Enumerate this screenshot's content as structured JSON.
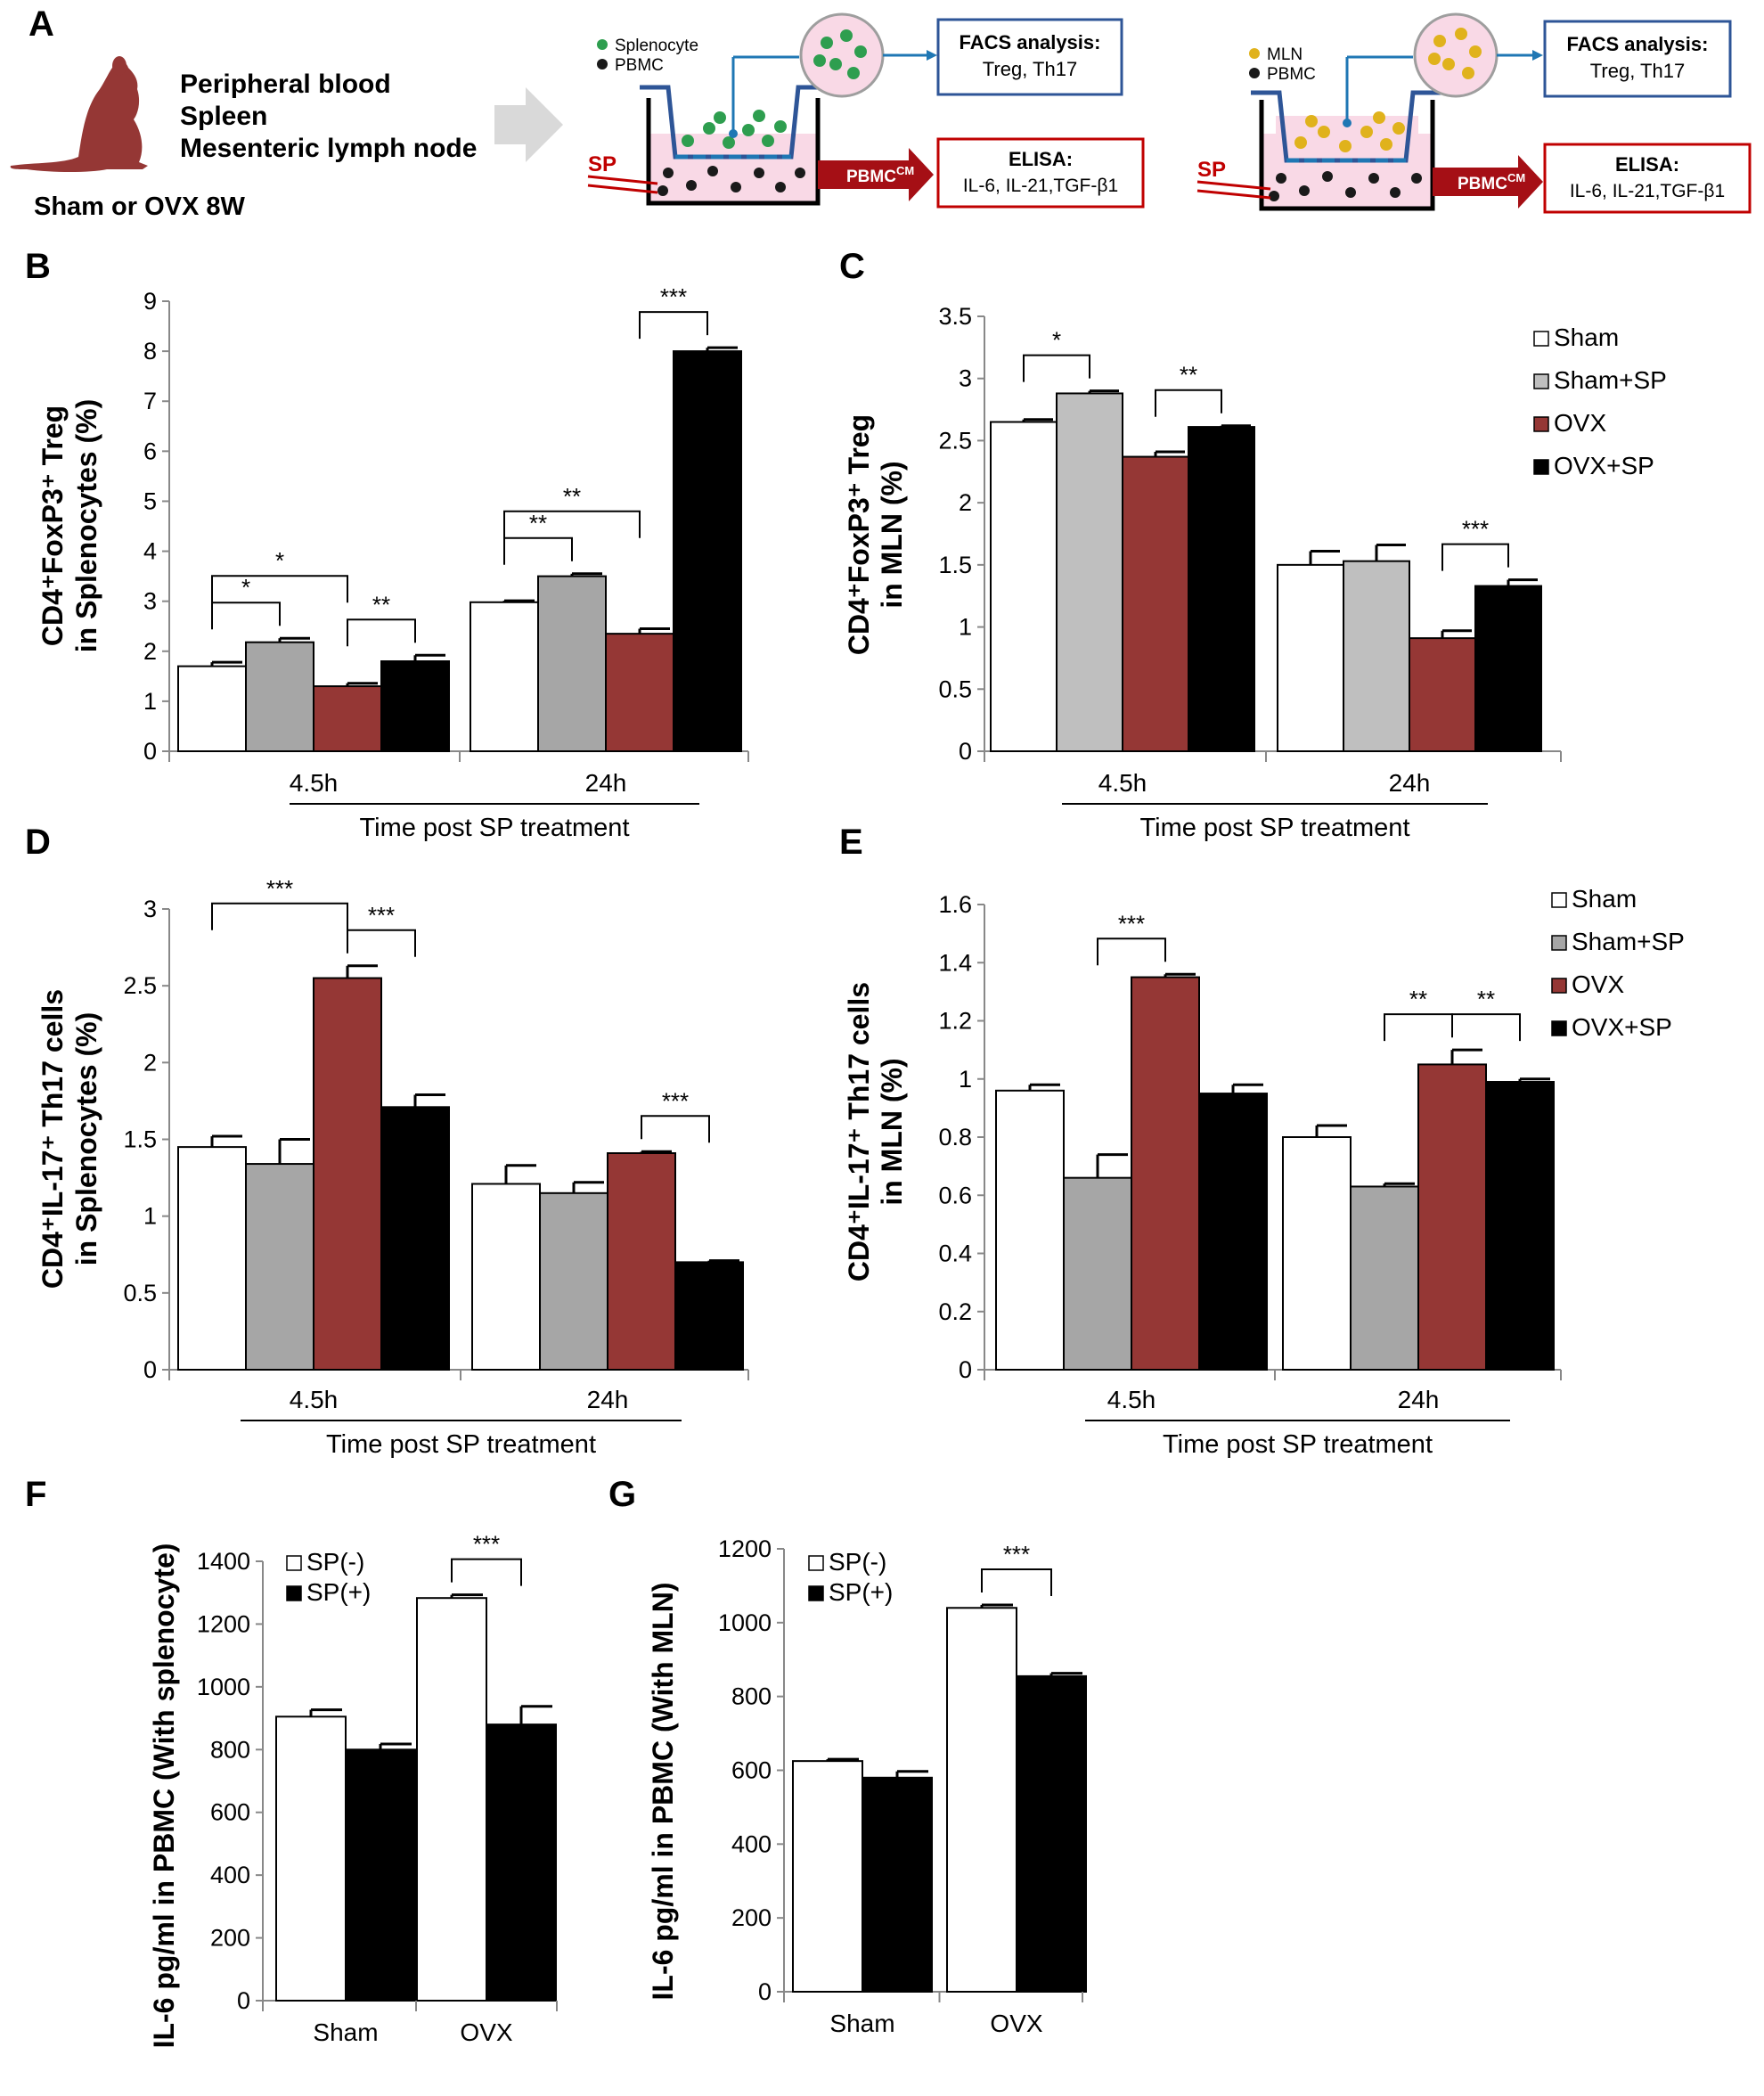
{
  "panel_A": {
    "label": "A",
    "tissue_lines": [
      "Peripheral blood",
      "Spleen",
      "Mesenteric lymph node"
    ],
    "group_text": "Sham or OVX 8W",
    "schematic_left": {
      "legend": [
        "Splenocyte",
        "PBMC"
      ],
      "facs_title": "FACS analysis:",
      "facs_detail": "Treg, Th17",
      "elisa_title": "ELISA:",
      "elisa_detail": "IL-6, IL-21,TGF-β1",
      "sp_label": "SP",
      "pbmc_cm": "PBMC",
      "pbmc_cm_sup": "CM",
      "dot_color": "#2e9e4f"
    },
    "schematic_right": {
      "legend": [
        "MLN",
        "PBMC"
      ],
      "facs_title": "FACS analysis:",
      "facs_detail": "Treg, Th17",
      "elisa_title": "ELISA:",
      "elisa_detail": "IL-6, IL-21,TGF-β1",
      "sp_label": "SP",
      "pbmc_cm": "PBMC",
      "pbmc_cm_sup": "CM",
      "dot_color": "#e0b21c"
    }
  },
  "colors": {
    "white": "#ffffff",
    "gray": "#a6a6a6",
    "lightgray": "#bfbfbf",
    "red": "#953735",
    "black": "#000000",
    "mouse": "#953735",
    "arrow_red": "#a50f15",
    "box_blue": "#2e5597",
    "line_blue": "#1f77b4",
    "well_pink": "#f9d9e6"
  },
  "chart_data": [
    {
      "panel": "B",
      "type": "bar",
      "ylabel_line1": "CD4⁺FoxP3⁺ Treg",
      "ylabel_line2": "in Splenocytes (%)",
      "xlabel": "Time post SP treatment",
      "categories": [
        "4.5h",
        "24h"
      ],
      "ylim": [
        0,
        9
      ],
      "yticks": [
        "0",
        "1",
        "2",
        "3",
        "4",
        "5",
        "6",
        "7",
        "8",
        "9"
      ],
      "series": [
        {
          "values": [
            1.7,
            2.98
          ],
          "errors": [
            0.08,
            0.03
          ],
          "color": "#ffffff"
        },
        {
          "values": [
            2.18,
            3.5
          ],
          "errors": [
            0.08,
            0.05
          ],
          "color": "#a6a6a6"
        },
        {
          "values": [
            1.3,
            2.35
          ],
          "errors": [
            0.06,
            0.1
          ],
          "color": "#953735"
        },
        {
          "values": [
            1.8,
            8.0
          ],
          "errors": [
            0.12,
            0.07
          ],
          "color": "#000000"
        }
      ],
      "significance": [
        {
          "label": "*",
          "group": 0,
          "from": 0,
          "to": 2
        },
        {
          "label": "*",
          "group": 0,
          "from": 0,
          "to": 1
        },
        {
          "label": "**",
          "group": 0,
          "from": 2,
          "to": 3
        },
        {
          "label": "**",
          "group": 1,
          "from": 0,
          "to": 1
        },
        {
          "label": "**",
          "group": 1,
          "from": 0,
          "to": 2
        },
        {
          "label": "***",
          "group": 1,
          "from": 2,
          "to": 3
        }
      ]
    },
    {
      "panel": "C",
      "type": "bar",
      "ylabel_line1": "CD4⁺FoxP3⁺ Treg",
      "ylabel_line2": "in MLN (%)",
      "xlabel": "Time post SP treatment",
      "categories": [
        "4.5h",
        "24h"
      ],
      "ylim": [
        0,
        3.5
      ],
      "yticks": [
        "0",
        "0.5",
        "1",
        "1.5",
        "2",
        "2.5",
        "3",
        "3.5"
      ],
      "legend": [
        "Sham",
        "Sham+SP",
        "OVX",
        "OVX+SP"
      ],
      "series": [
        {
          "name": "Sham",
          "values": [
            2.65,
            1.5
          ],
          "errors": [
            0.02,
            0.11
          ],
          "color": "#ffffff"
        },
        {
          "name": "Sham+SP",
          "values": [
            2.88,
            1.53
          ],
          "errors": [
            0.02,
            0.13
          ],
          "color": "#bfbfbf"
        },
        {
          "name": "OVX",
          "values": [
            2.37,
            0.91
          ],
          "errors": [
            0.04,
            0.06
          ],
          "color": "#953735"
        },
        {
          "name": "OVX+SP",
          "values": [
            2.61,
            1.33
          ],
          "errors": [
            0.01,
            0.05
          ],
          "color": "#000000"
        }
      ],
      "significance": [
        {
          "label": "*",
          "group": 0,
          "from": 0,
          "to": 1
        },
        {
          "label": "**",
          "group": 0,
          "from": 2,
          "to": 3
        },
        {
          "label": "***",
          "group": 1,
          "from": 2,
          "to": 3
        }
      ]
    },
    {
      "panel": "D",
      "type": "bar",
      "ylabel_line1": "CD4⁺IL-17⁺ Th17 cells",
      "ylabel_line2": "in Splenocytes (%)",
      "xlabel": "Time post SP treatment",
      "categories": [
        "4.5h",
        "24h"
      ],
      "ylim": [
        0,
        3
      ],
      "yticks": [
        "0",
        "0.5",
        "1",
        "1.5",
        "2",
        "2.5",
        "3"
      ],
      "series": [
        {
          "values": [
            1.45,
            1.21
          ],
          "errors": [
            0.07,
            0.12
          ],
          "color": "#ffffff"
        },
        {
          "values": [
            1.34,
            1.15
          ],
          "errors": [
            0.16,
            0.07
          ],
          "color": "#a6a6a6"
        },
        {
          "values": [
            2.55,
            1.41
          ],
          "errors": [
            0.08,
            0.01
          ],
          "color": "#953735"
        },
        {
          "values": [
            1.71,
            0.7
          ],
          "errors": [
            0.08,
            0.01
          ],
          "color": "#000000"
        }
      ],
      "significance": [
        {
          "label": "***",
          "group": 0,
          "from": 0,
          "to": 2
        },
        {
          "label": "***",
          "group": 0,
          "from": 2,
          "to": 3
        },
        {
          "label": "***",
          "group": 1,
          "from": 2,
          "to": 3
        }
      ]
    },
    {
      "panel": "E",
      "type": "bar",
      "ylabel_line1": "CD4⁺IL-17⁺ Th17 cells",
      "ylabel_line2": "in MLN (%)",
      "xlabel": "Time post SP treatment",
      "categories": [
        "4.5h",
        "24h"
      ],
      "ylim": [
        0,
        1.6
      ],
      "yticks": [
        "0",
        "0.2",
        "0.4",
        "0.6",
        "0.8",
        "1",
        "1.2",
        "1.4",
        "1.6"
      ],
      "legend": [
        "Sham",
        "Sham+SP",
        "OVX",
        "OVX+SP"
      ],
      "series": [
        {
          "name": "Sham",
          "values": [
            0.96,
            0.8
          ],
          "errors": [
            0.02,
            0.04
          ],
          "color": "#ffffff"
        },
        {
          "name": "Sham+SP",
          "values": [
            0.66,
            0.63
          ],
          "errors": [
            0.08,
            0.01
          ],
          "color": "#a6a6a6"
        },
        {
          "name": "OVX",
          "values": [
            1.35,
            1.05
          ],
          "errors": [
            0.01,
            0.05
          ],
          "color": "#953735"
        },
        {
          "name": "OVX+SP",
          "values": [
            0.95,
            0.99
          ],
          "errors": [
            0.03,
            0.01
          ],
          "color": "#000000"
        }
      ],
      "significance": [
        {
          "label": "***",
          "group": 0,
          "from": 1,
          "to": 2
        },
        {
          "label": "**",
          "group": 1,
          "from": 1,
          "to": 2
        },
        {
          "label": "**",
          "group": 1,
          "from": 2,
          "to": 3
        }
      ]
    },
    {
      "panel": "F",
      "type": "bar",
      "ylabel": "IL-6 pg/ml in PBMC (With splenocyte)",
      "categories": [
        "Sham",
        "OVX"
      ],
      "ylim": [
        0,
        1400
      ],
      "yticks": [
        "0",
        "200",
        "400",
        "600",
        "800",
        "1000",
        "1200",
        "1400"
      ],
      "legend": [
        "SP(-)",
        "SP(+)"
      ],
      "series": [
        {
          "name": "SP(-)",
          "values": [
            905,
            1283
          ],
          "errors": [
            22,
            10
          ],
          "color": "#ffffff"
        },
        {
          "name": "SP(+)",
          "values": [
            800,
            880
          ],
          "errors": [
            18,
            58
          ],
          "color": "#000000"
        }
      ],
      "significance": [
        {
          "label": "***",
          "group": 1,
          "from": 0,
          "to": 1
        }
      ]
    },
    {
      "panel": "G",
      "type": "bar",
      "ylabel": "IL-6 pg/ml in PBMC (With MLN)",
      "categories": [
        "Sham",
        "OVX"
      ],
      "ylim": [
        0,
        1200
      ],
      "yticks": [
        "0",
        "200",
        "400",
        "600",
        "800",
        "1000",
        "1200"
      ],
      "legend": [
        "SP(-)",
        "SP(+)"
      ],
      "series": [
        {
          "name": "SP(-)",
          "values": [
            625,
            1040
          ],
          "errors": [
            5,
            8
          ],
          "color": "#ffffff"
        },
        {
          "name": "SP(+)",
          "values": [
            580,
            855
          ],
          "errors": [
            17,
            8
          ],
          "color": "#000000"
        }
      ],
      "significance": [
        {
          "label": "***",
          "group": 1,
          "from": 0,
          "to": 1
        }
      ]
    }
  ]
}
